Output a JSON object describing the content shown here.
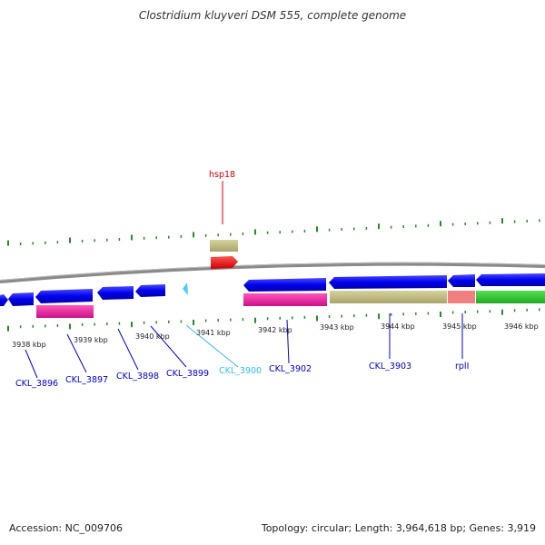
{
  "title": "Clostridium kluyveri DSM 555, complete genome",
  "footer": {
    "accession": "Accession: NC_009706",
    "topology": "Topology: circular; Length: 3,964,618 bp; Genes: 3,919"
  },
  "ruler_labels": [
    "3938 kbp",
    "3939 kbp",
    "3940 kbp",
    "3941 kbp",
    "3942 kbp",
    "3943 kbp",
    "3944 kbp",
    "3945 kbp",
    "3946 kbp"
  ],
  "gene_labels": [
    {
      "text": "hsp18",
      "color": "#cc0000"
    },
    {
      "text": "CKL_3896",
      "color": "#0000cc"
    },
    {
      "text": "CKL_3897",
      "color": "#0000cc"
    },
    {
      "text": "CKL_3898",
      "color": "#0000cc"
    },
    {
      "text": "CKL_3899",
      "color": "#0000cc"
    },
    {
      "text": "CKL_3900",
      "color": "#33bbee"
    },
    {
      "text": "CKL_3902",
      "color": "#0000cc"
    },
    {
      "text": "CKL_3903",
      "color": "#0000cc"
    },
    {
      "text": "rplI",
      "color": "#0000cc"
    }
  ],
  "colors": {
    "cds_forward": "#0000ee",
    "cds_reverse_marker": "#ee1111",
    "small_cds": "#44ccff",
    "trna_pink": "#ee2299",
    "khaki": "#bdb87a",
    "salmon": "#f08080",
    "green": "#33cc33",
    "backbone": "#888888",
    "tick": "#2a8a2a"
  }
}
